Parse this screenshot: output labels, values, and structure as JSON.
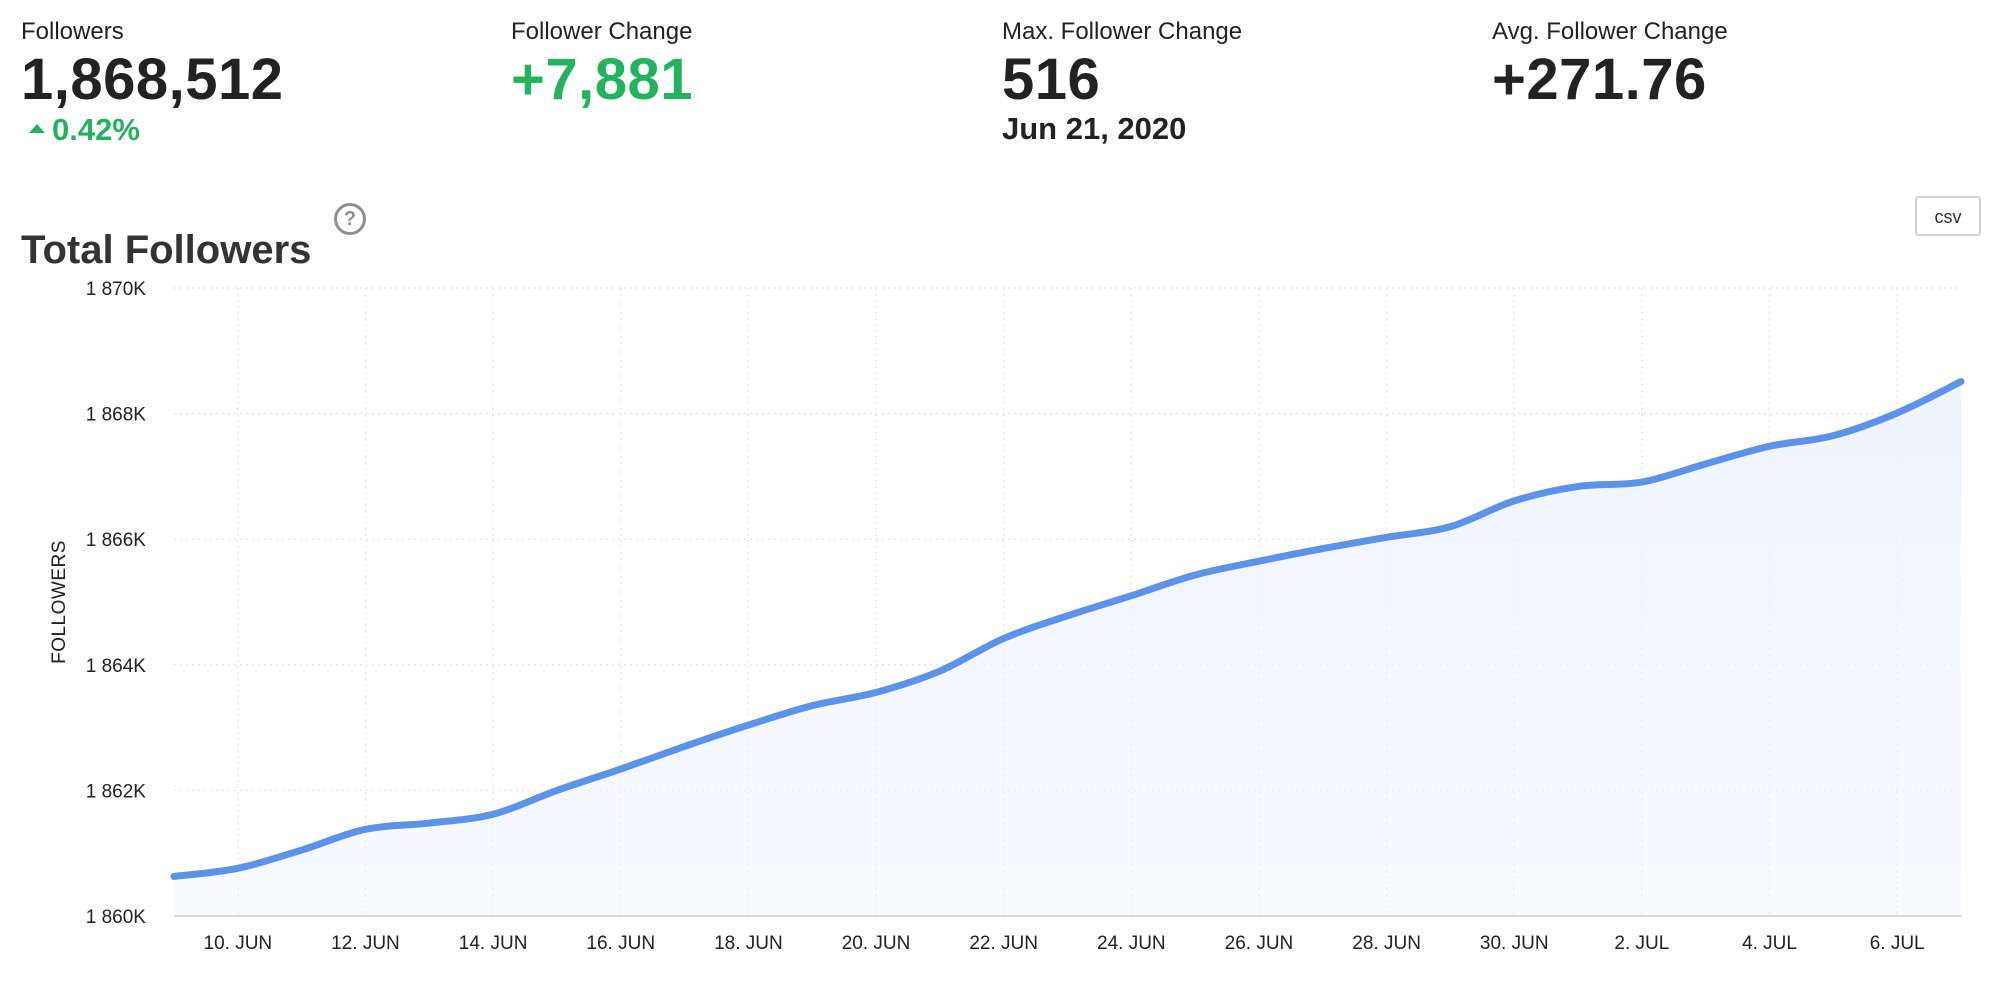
{
  "stats": {
    "followers": {
      "label": "Followers",
      "value": "1,868,512",
      "change_percent": "0.42%",
      "trend_icon": "up-triangle-icon"
    },
    "follower_change": {
      "label": "Follower Change",
      "value": "+7,881"
    },
    "max_follower_change": {
      "label": "Max. Follower Change",
      "value": "516",
      "date": "Jun 21, 2020"
    },
    "avg_follower_change": {
      "label": "Avg. Follower Change",
      "value": "+271.76"
    }
  },
  "section": {
    "title": "Total Followers",
    "help_icon": "?",
    "csv_label": "csv"
  },
  "colors": {
    "positive": "#22b35e",
    "line": "#5b93eb",
    "area": "#eef4fd",
    "grid": "#e6e6e6"
  },
  "chart_data": {
    "type": "area",
    "title": "Total Followers",
    "ylabel": "FOLLOWERS",
    "xlabel": "",
    "ylim": [
      1860000,
      1870000
    ],
    "xlim": [
      "2020-06-09",
      "2020-07-07"
    ],
    "grid": true,
    "legend": "none",
    "y_ticks": [
      {
        "value": 1860000,
        "label": "1 860K"
      },
      {
        "value": 1862000,
        "label": "1 862K"
      },
      {
        "value": 1864000,
        "label": "1 864K"
      },
      {
        "value": 1866000,
        "label": "1 866K"
      },
      {
        "value": 1868000,
        "label": "1 868K"
      },
      {
        "value": 1870000,
        "label": "1 870K"
      }
    ],
    "x_ticks": [
      {
        "date": "2020-06-10",
        "label": "10. JUN"
      },
      {
        "date": "2020-06-12",
        "label": "12. JUN"
      },
      {
        "date": "2020-06-14",
        "label": "14. JUN"
      },
      {
        "date": "2020-06-16",
        "label": "16. JUN"
      },
      {
        "date": "2020-06-18",
        "label": "18. JUN"
      },
      {
        "date": "2020-06-20",
        "label": "20. JUN"
      },
      {
        "date": "2020-06-22",
        "label": "22. JUN"
      },
      {
        "date": "2020-06-24",
        "label": "24. JUN"
      },
      {
        "date": "2020-06-26",
        "label": "26. JUN"
      },
      {
        "date": "2020-06-28",
        "label": "28. JUN"
      },
      {
        "date": "2020-06-30",
        "label": "30. JUN"
      },
      {
        "date": "2020-07-02",
        "label": "2. JUL"
      },
      {
        "date": "2020-07-04",
        "label": "4. JUL"
      },
      {
        "date": "2020-07-06",
        "label": "6. JUL"
      }
    ],
    "series": [
      {
        "points": [
          {
            "date": "2020-06-09",
            "y": 1860630
          },
          {
            "date": "2020-06-10",
            "y": 1860760
          },
          {
            "date": "2020-06-11",
            "y": 1861050
          },
          {
            "date": "2020-06-12",
            "y": 1861380
          },
          {
            "date": "2020-06-13",
            "y": 1861480
          },
          {
            "date": "2020-06-14",
            "y": 1861620
          },
          {
            "date": "2020-06-15",
            "y": 1862000
          },
          {
            "date": "2020-06-16",
            "y": 1862340
          },
          {
            "date": "2020-06-17",
            "y": 1862700
          },
          {
            "date": "2020-06-18",
            "y": 1863040
          },
          {
            "date": "2020-06-19",
            "y": 1863350
          },
          {
            "date": "2020-06-20",
            "y": 1863560
          },
          {
            "date": "2020-06-21",
            "y": 1863900
          },
          {
            "date": "2020-06-22",
            "y": 1864420
          },
          {
            "date": "2020-06-23",
            "y": 1864780
          },
          {
            "date": "2020-06-24",
            "y": 1865100
          },
          {
            "date": "2020-06-25",
            "y": 1865430
          },
          {
            "date": "2020-06-26",
            "y": 1865650
          },
          {
            "date": "2020-06-27",
            "y": 1865850
          },
          {
            "date": "2020-06-28",
            "y": 1866030
          },
          {
            "date": "2020-06-29",
            "y": 1866200
          },
          {
            "date": "2020-06-30",
            "y": 1866610
          },
          {
            "date": "2020-07-01",
            "y": 1866840
          },
          {
            "date": "2020-07-02",
            "y": 1866910
          },
          {
            "date": "2020-07-03",
            "y": 1867200
          },
          {
            "date": "2020-07-04",
            "y": 1867480
          },
          {
            "date": "2020-07-05",
            "y": 1867650
          },
          {
            "date": "2020-07-06",
            "y": 1868010
          },
          {
            "date": "2020-07-07",
            "y": 1868510
          }
        ]
      }
    ]
  }
}
